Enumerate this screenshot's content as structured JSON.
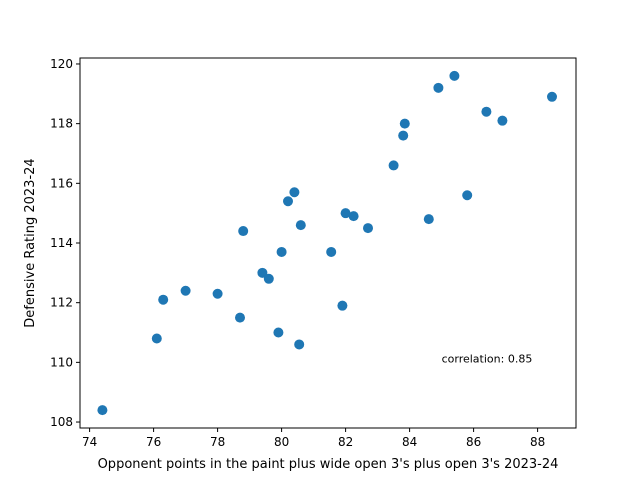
{
  "chart_data": {
    "type": "scatter",
    "title": "",
    "xlabel": "Opponent points in the paint plus wide open 3's plus open 3's 2023-24",
    "ylabel": "Defensive Rating 2023-24",
    "xlim": [
      73.7,
      89.2
    ],
    "ylim": [
      107.8,
      120.2
    ],
    "xticks": [
      74,
      76,
      78,
      80,
      82,
      84,
      86,
      88
    ],
    "yticks": [
      108,
      110,
      112,
      114,
      116,
      118,
      120
    ],
    "grid": false,
    "legend": "none",
    "annotation": {
      "text": "correlation: 0.85",
      "x": 85.0,
      "y": 110.0
    },
    "marker_color": "#1f77b4",
    "points": [
      {
        "x": 74.4,
        "y": 108.4
      },
      {
        "x": 76.1,
        "y": 110.8
      },
      {
        "x": 76.3,
        "y": 112.1
      },
      {
        "x": 77.0,
        "y": 112.4
      },
      {
        "x": 78.0,
        "y": 112.3
      },
      {
        "x": 78.7,
        "y": 111.5
      },
      {
        "x": 78.8,
        "y": 114.4
      },
      {
        "x": 79.4,
        "y": 113.0
      },
      {
        "x": 79.6,
        "y": 112.8
      },
      {
        "x": 79.9,
        "y": 111.0
      },
      {
        "x": 80.0,
        "y": 113.7
      },
      {
        "x": 80.2,
        "y": 115.4
      },
      {
        "x": 80.4,
        "y": 115.7
      },
      {
        "x": 80.6,
        "y": 114.6
      },
      {
        "x": 80.55,
        "y": 110.6
      },
      {
        "x": 81.55,
        "y": 113.7
      },
      {
        "x": 81.9,
        "y": 111.9
      },
      {
        "x": 82.0,
        "y": 115.0
      },
      {
        "x": 82.25,
        "y": 114.9
      },
      {
        "x": 82.7,
        "y": 114.5
      },
      {
        "x": 83.5,
        "y": 116.6
      },
      {
        "x": 83.8,
        "y": 117.6
      },
      {
        "x": 83.85,
        "y": 118.0
      },
      {
        "x": 84.6,
        "y": 114.8
      },
      {
        "x": 84.9,
        "y": 119.2
      },
      {
        "x": 85.4,
        "y": 119.6
      },
      {
        "x": 85.8,
        "y": 115.6
      },
      {
        "x": 86.4,
        "y": 118.4
      },
      {
        "x": 86.9,
        "y": 118.1
      },
      {
        "x": 88.45,
        "y": 118.9
      }
    ]
  }
}
